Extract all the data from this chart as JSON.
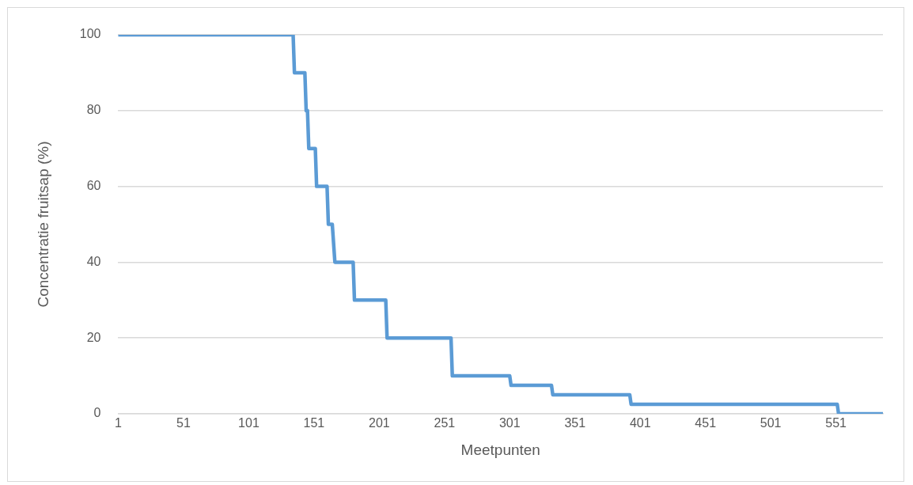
{
  "chart_data": {
    "type": "line",
    "xlabel": "Meetpunten",
    "ylabel": "Concentratie fruitsap (%)",
    "x": [
      1,
      135,
      136,
      144,
      145,
      146,
      147,
      152,
      153,
      161,
      162,
      165,
      167,
      181,
      182,
      206,
      207,
      256,
      257,
      301,
      302,
      333,
      334,
      393,
      394,
      552,
      553,
      587
    ],
    "series": [
      {
        "color": "#5b9bd5",
        "values": [
          100,
          100,
          90,
          90,
          80,
          80,
          70,
          70,
          60,
          60,
          50,
          50,
          40,
          40,
          30,
          30,
          20,
          20,
          10,
          10,
          7.5,
          7.5,
          5,
          5,
          2.5,
          2.5,
          0,
          0
        ]
      }
    ],
    "xlim": [
      1,
      587
    ],
    "xticks": [
      1,
      51,
      101,
      151,
      201,
      251,
      301,
      351,
      401,
      451,
      501,
      551
    ],
    "ylim": [
      0,
      100
    ],
    "yticks": [
      0,
      20,
      40,
      60,
      80,
      100
    ],
    "grid": "y",
    "legend": false,
    "marker": "none",
    "line_style": "solid"
  }
}
